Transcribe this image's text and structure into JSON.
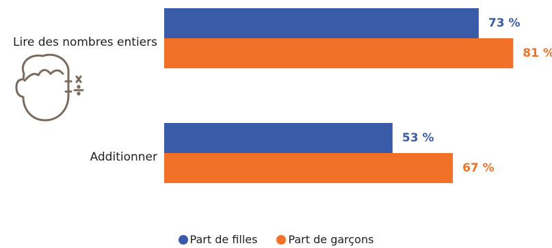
{
  "chart_data": {
    "type": "bar",
    "orientation": "horizontal",
    "categories": [
      "Lire des nombres entiers",
      "Additionner"
    ],
    "series": [
      {
        "name": "Part de filles",
        "values": [
          73,
          53
        ],
        "labels": [
          "73 %",
          "53 %"
        ],
        "color": "#3a5ba8"
      },
      {
        "name": "Part de garçons",
        "values": [
          81,
          67
        ],
        "labels": [
          "81 %",
          "67 %"
        ],
        "color": "#f07127"
      }
    ],
    "xlim": [
      0,
      100
    ],
    "grid": false,
    "legend_position": "bottom-center",
    "title": "",
    "xlabel": "",
    "ylabel": ""
  },
  "icon": "child-math-icon",
  "colors": {
    "icon": "#7a6a5e",
    "text": "#1e1e1e"
  }
}
